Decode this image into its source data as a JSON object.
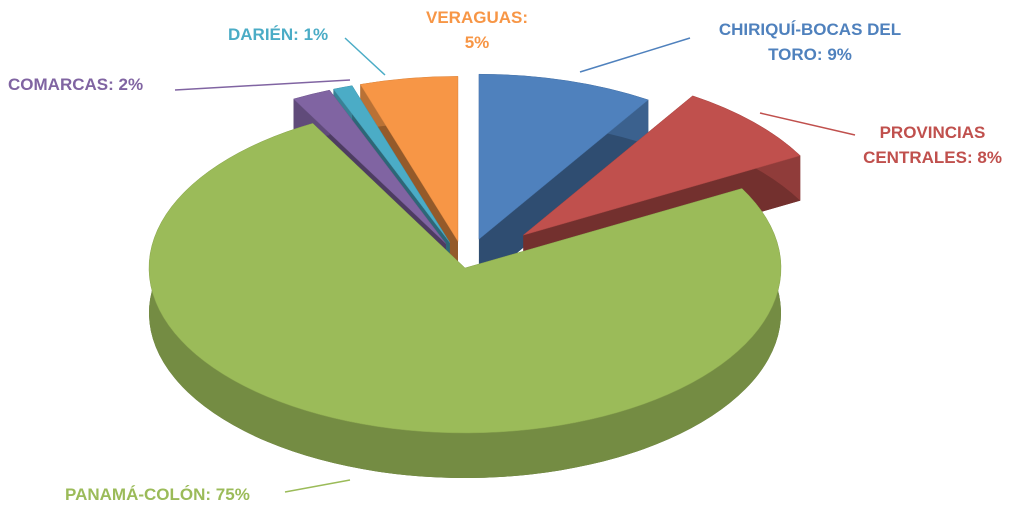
{
  "chart_data": {
    "type": "pie",
    "categories": [
      "CHIRIQUÍ-BOCAS DEL TORO:",
      "PROVINCIAS CENTRALES:",
      "PANAMÁ-COLÓN:",
      "COMARCAS:",
      "DARIÉN:",
      "VERAGUAS:"
    ],
    "values": [
      9,
      8,
      75,
      2,
      1,
      5
    ],
    "value_labels": [
      "9%",
      "8%",
      "75%",
      "2%",
      "1%",
      "5%"
    ],
    "colors": [
      "#4f81bd",
      "#c0504d",
      "#9bbb59",
      "#8064a2",
      "#4bacc6",
      "#f79646"
    ]
  }
}
